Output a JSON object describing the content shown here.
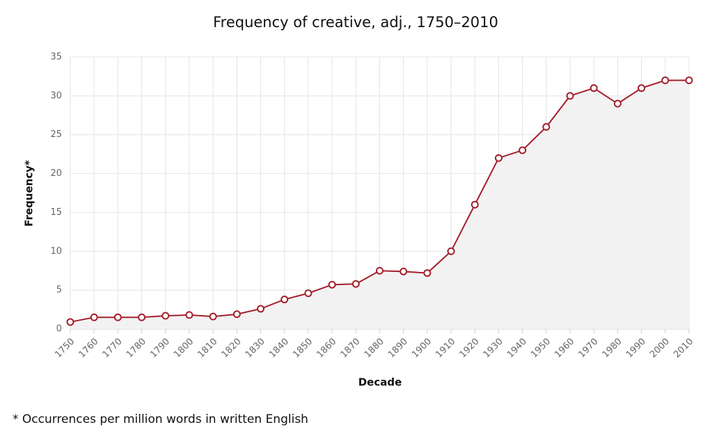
{
  "chart_data": {
    "type": "area-line",
    "title": "Frequency of creative, adj., 1750–2010",
    "x_label": "Decade",
    "y_label": "Frequency*",
    "footnote": "* Occurrences per million words in written English",
    "x": [
      1750,
      1760,
      1770,
      1780,
      1790,
      1800,
      1810,
      1820,
      1830,
      1840,
      1850,
      1860,
      1870,
      1880,
      1890,
      1900,
      1910,
      1920,
      1930,
      1940,
      1950,
      1960,
      1970,
      1980,
      1990,
      2000,
      2010
    ],
    "values": [
      0.9,
      1.5,
      1.5,
      1.5,
      1.7,
      1.8,
      1.6,
      1.9,
      2.6,
      3.8,
      4.6,
      5.7,
      5.8,
      7.5,
      7.4,
      7.2,
      10,
      16,
      22,
      23,
      26,
      30,
      31,
      29,
      31,
      32,
      32
    ],
    "color": "#a3202d",
    "area_color": "#f2f2f2",
    "xlim": [
      1750,
      2010
    ],
    "xticks": [
      1750,
      1760,
      1770,
      1780,
      1790,
      1800,
      1810,
      1820,
      1830,
      1840,
      1850,
      1860,
      1870,
      1880,
      1890,
      1900,
      1910,
      1920,
      1930,
      1940,
      1950,
      1960,
      1970,
      1980,
      1990,
      2000,
      2010
    ],
    "ylim": [
      0,
      35
    ],
    "yticks": [
      0,
      5,
      10,
      15,
      20,
      25,
      30,
      35
    ],
    "grid": true
  }
}
